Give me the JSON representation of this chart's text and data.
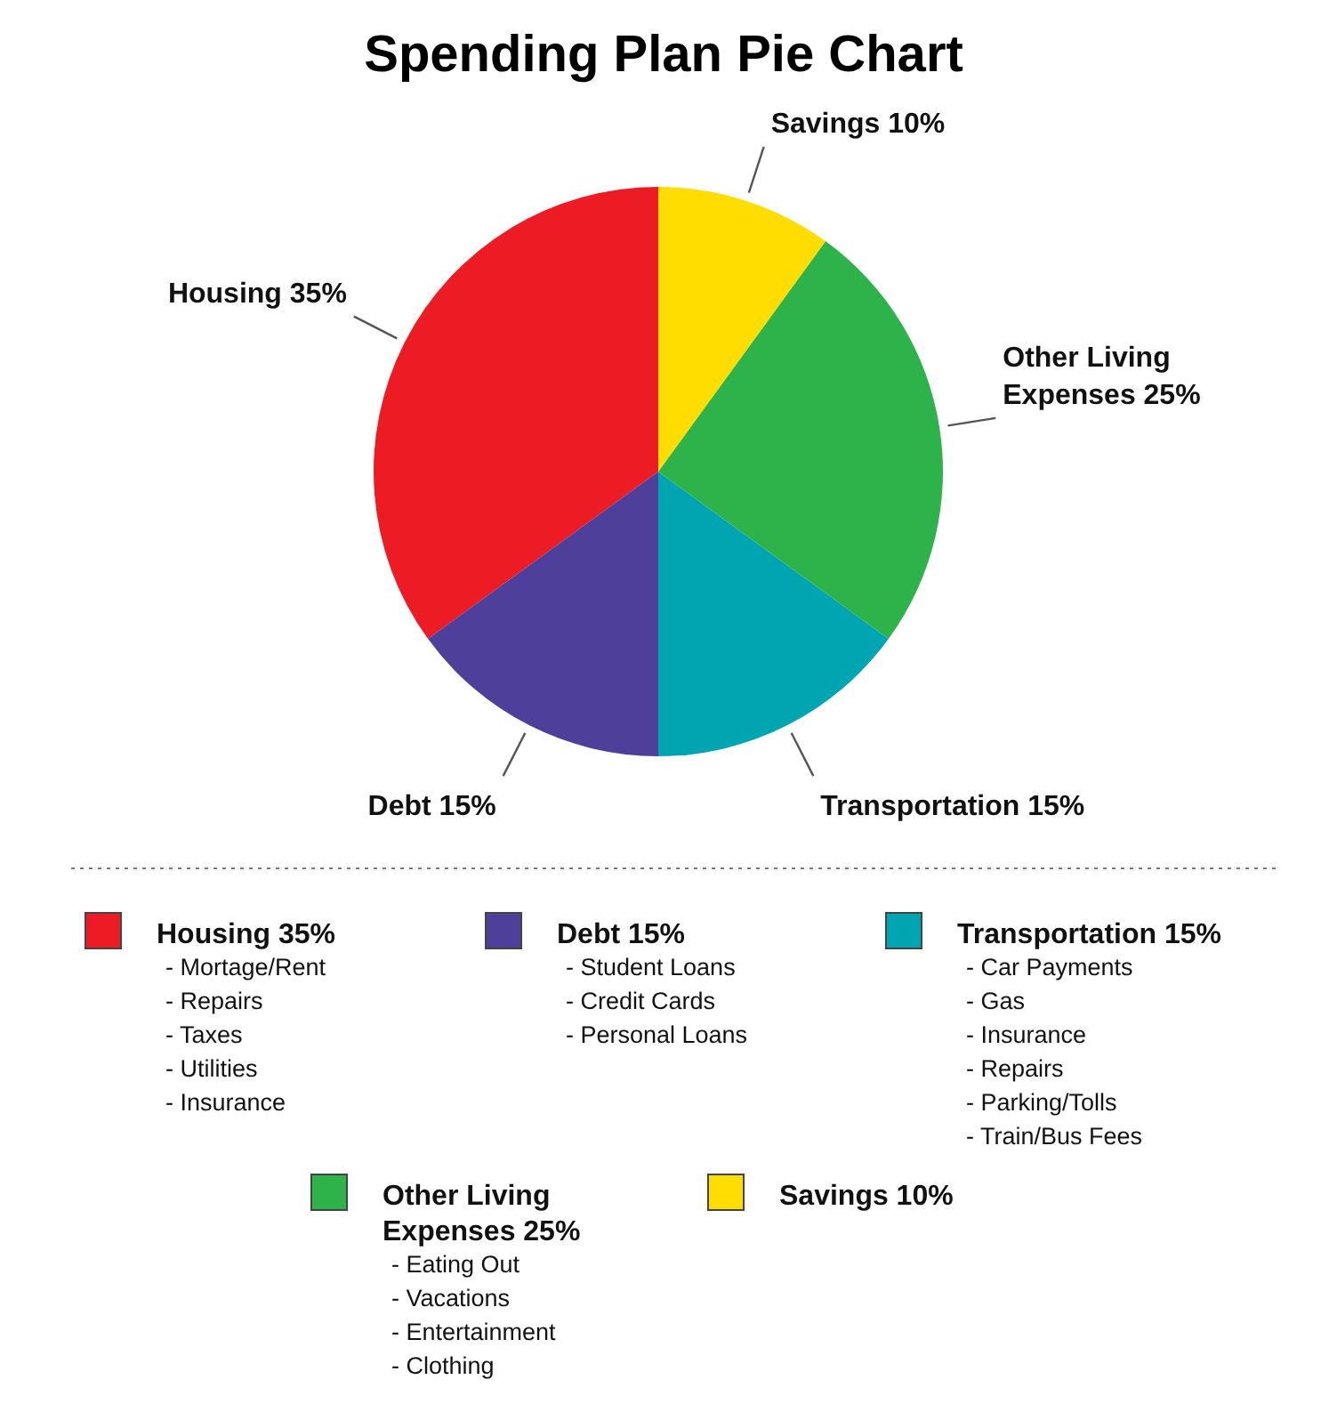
{
  "chart_data": {
    "type": "pie",
    "title": "Spending Plan Pie Chart",
    "categories": [
      "Housing",
      "Debt",
      "Transportation",
      "Other Living Expenses",
      "Savings"
    ],
    "values": [
      35,
      15,
      15,
      25,
      10
    ],
    "value_labels": [
      "35%",
      "15%",
      "15%",
      "25%",
      "10%"
    ],
    "colors": [
      "#ed1c24",
      "#4e3f9a",
      "#00a5b2",
      "#2db34a",
      "#ffdd00"
    ],
    "legend": "bottom",
    "annotations": [
      {
        "text": "- Mortage/Rent",
        "x": "Housing"
      },
      {
        "text": "- Repairs",
        "x": "Housing"
      },
      {
        "text": "- Taxes",
        "x": "Housing"
      },
      {
        "text": "- Utilities",
        "x": "Housing"
      },
      {
        "text": "- Insurance",
        "x": "Housing"
      },
      {
        "text": "- Student Loans",
        "x": "Debt"
      },
      {
        "text": "- Credit Cards",
        "x": "Debt"
      },
      {
        "text": "- Personal Loans",
        "x": "Debt"
      },
      {
        "text": "- Car Payments",
        "x": "Transportation"
      },
      {
        "text": "- Gas",
        "x": "Transportation"
      },
      {
        "text": "- Insurance",
        "x": "Transportation"
      },
      {
        "text": "- Repairs",
        "x": "Transportation"
      },
      {
        "text": "- Parking/Tolls",
        "x": "Transportation"
      },
      {
        "text": "- Train/Bus Fees",
        "x": "Transportation"
      },
      {
        "text": "- Eating Out",
        "x": "Other Living Expenses"
      },
      {
        "text": "- Vacations",
        "x": "Other Living Expenses"
      },
      {
        "text": "- Entertainment",
        "x": "Other Living Expenses"
      },
      {
        "text": "- Clothing",
        "x": "Other Living Expenses"
      }
    ]
  }
}
